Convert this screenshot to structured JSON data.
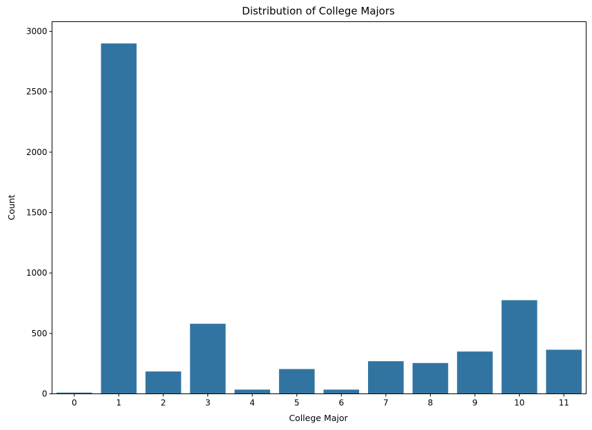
{
  "chart_data": {
    "type": "bar",
    "title": "Distribution of College Majors",
    "xlabel": "College Major",
    "ylabel": "Count",
    "categories": [
      "0",
      "1",
      "2",
      "3",
      "4",
      "5",
      "6",
      "7",
      "8",
      "9",
      "10",
      "11"
    ],
    "values": [
      10,
      2900,
      185,
      580,
      35,
      205,
      35,
      270,
      255,
      350,
      775,
      365
    ],
    "ylim": [
      0,
      3080
    ],
    "yticks": [
      0,
      500,
      1000,
      1500,
      2000,
      2500,
      3000
    ],
    "bar_color": "#3274a1",
    "grid": false,
    "legend": "none"
  }
}
